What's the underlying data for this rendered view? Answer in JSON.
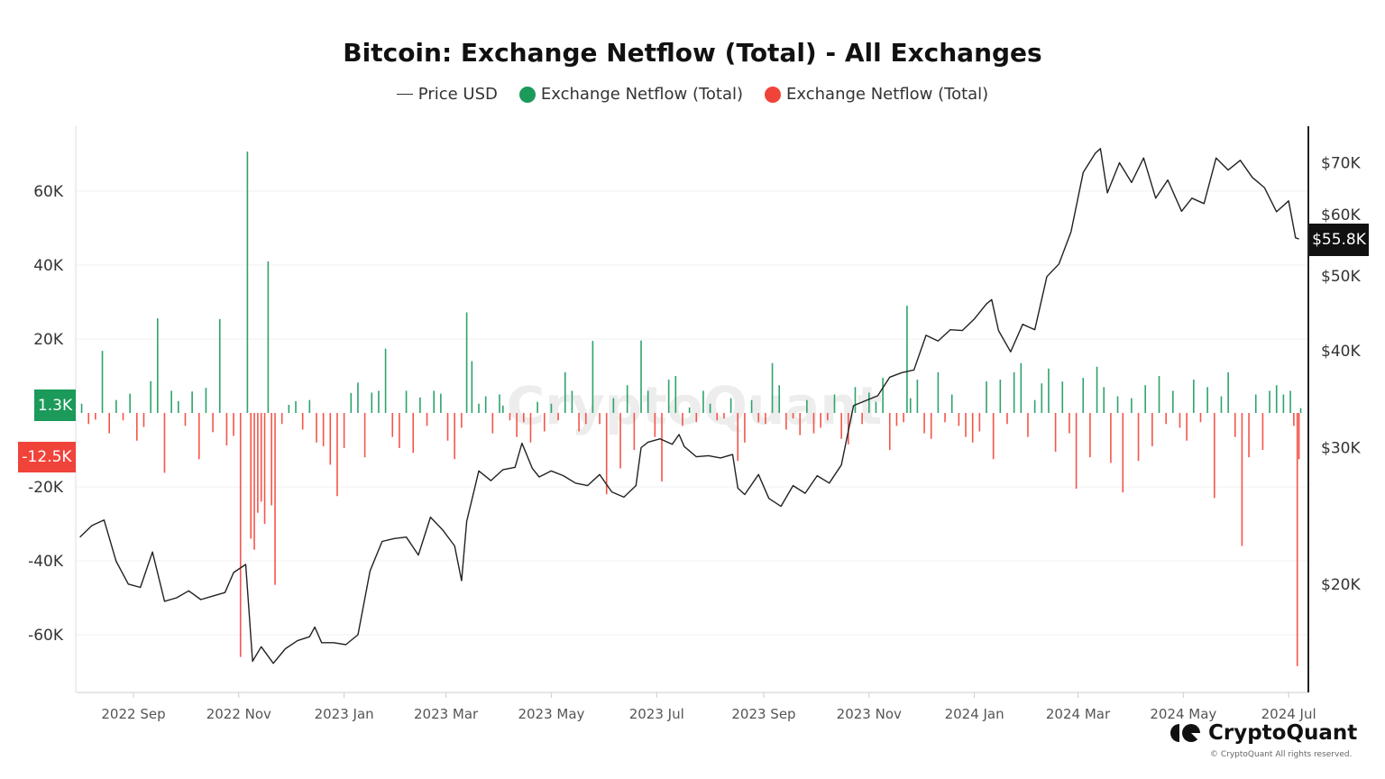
{
  "chart_data": {
    "type": "bar+line",
    "title": "Bitcoin: Exchange Netflow (Total) - All Exchanges",
    "legend": [
      "Price USD",
      "Exchange Netflow (Total)",
      "Exchange Netflow (Total)"
    ],
    "legend_placement": "top",
    "colors": {
      "price": "#222222",
      "inflow": "#2ea36b",
      "outflow": "#f4554a",
      "inflow_badge": "#1b9a5a",
      "outflow_badge": "#f0433a",
      "price_badge": "#111111"
    },
    "x_ticks": [
      "2022 Sep",
      "2022 Nov",
      "2023 Jan",
      "2023 Mar",
      "2023 May",
      "2023 Jul",
      "2023 Sep",
      "2023 Nov",
      "2024 Jan",
      "2024 Mar",
      "2024 May",
      "2024 Jul"
    ],
    "x_tick_dates": [
      "2022-09-01",
      "2022-11-01",
      "2023-01-01",
      "2023-03-01",
      "2023-05-01",
      "2023-07-01",
      "2023-09-01",
      "2023-11-01",
      "2024-01-01",
      "2024-03-01",
      "2024-05-01",
      "2024-07-01"
    ],
    "y_left": {
      "ticks": [
        60000,
        40000,
        20000,
        -20000,
        -40000,
        -60000
      ],
      "tick_labels": [
        "60K",
        "40K",
        "20K",
        "-20K",
        "-40K",
        "-60K"
      ],
      "range": [
        -75000,
        77000
      ],
      "grid": true
    },
    "y_right": {
      "scale": "log",
      "ticks": [
        70000,
        60000,
        50000,
        40000,
        30000,
        20000
      ],
      "tick_labels": [
        "$70K",
        "$60K",
        "$50K",
        "$40K",
        "$30K",
        "$20K"
      ]
    },
    "badges": {
      "inflow_last": "1.3K",
      "outflow_last": "-12.5K",
      "price_last": "$55.8K"
    },
    "price": [
      [
        "2022-08-01",
        23000
      ],
      [
        "2022-08-08",
        23800
      ],
      [
        "2022-08-15",
        24200
      ],
      [
        "2022-08-22",
        21400
      ],
      [
        "2022-08-29",
        20000
      ],
      [
        "2022-09-05",
        19800
      ],
      [
        "2022-09-12",
        22000
      ],
      [
        "2022-09-19",
        19000
      ],
      [
        "2022-09-26",
        19200
      ],
      [
        "2022-10-03",
        19600
      ],
      [
        "2022-10-10",
        19100
      ],
      [
        "2022-10-17",
        19300
      ],
      [
        "2022-10-24",
        19500
      ],
      [
        "2022-10-29",
        20700
      ],
      [
        "2022-11-05",
        21200
      ],
      [
        "2022-11-09",
        15900
      ],
      [
        "2022-11-14",
        16600
      ],
      [
        "2022-11-21",
        15800
      ],
      [
        "2022-11-28",
        16500
      ],
      [
        "2022-12-05",
        16900
      ],
      [
        "2022-12-12",
        17100
      ],
      [
        "2022-12-15",
        17600
      ],
      [
        "2022-12-19",
        16800
      ],
      [
        "2022-12-26",
        16800
      ],
      [
        "2023-01-02",
        16700
      ],
      [
        "2023-01-09",
        17200
      ],
      [
        "2023-01-16",
        20800
      ],
      [
        "2023-01-23",
        22700
      ],
      [
        "2023-01-30",
        22900
      ],
      [
        "2023-02-06",
        23000
      ],
      [
        "2023-02-13",
        21800
      ],
      [
        "2023-02-20",
        24400
      ],
      [
        "2023-02-27",
        23500
      ],
      [
        "2023-03-06",
        22400
      ],
      [
        "2023-03-10",
        20200
      ],
      [
        "2023-03-13",
        24100
      ],
      [
        "2023-03-20",
        28000
      ],
      [
        "2023-03-27",
        27200
      ],
      [
        "2023-04-03",
        28100
      ],
      [
        "2023-04-10",
        28300
      ],
      [
        "2023-04-14",
        30400
      ],
      [
        "2023-04-20",
        28200
      ],
      [
        "2023-04-24",
        27500
      ],
      [
        "2023-05-01",
        28000
      ],
      [
        "2023-05-08",
        27600
      ],
      [
        "2023-05-15",
        27000
      ],
      [
        "2023-05-22",
        26800
      ],
      [
        "2023-05-29",
        27700
      ],
      [
        "2023-06-05",
        26300
      ],
      [
        "2023-06-12",
        25900
      ],
      [
        "2023-06-19",
        26800
      ],
      [
        "2023-06-22",
        30000
      ],
      [
        "2023-06-26",
        30500
      ],
      [
        "2023-07-03",
        30800
      ],
      [
        "2023-07-10",
        30300
      ],
      [
        "2023-07-14",
        31200
      ],
      [
        "2023-07-17",
        30100
      ],
      [
        "2023-07-24",
        29200
      ],
      [
        "2023-07-31",
        29300
      ],
      [
        "2023-08-07",
        29100
      ],
      [
        "2023-08-14",
        29400
      ],
      [
        "2023-08-17",
        26600
      ],
      [
        "2023-08-21",
        26100
      ],
      [
        "2023-08-29",
        27700
      ],
      [
        "2023-09-04",
        25800
      ],
      [
        "2023-09-11",
        25200
      ],
      [
        "2023-09-18",
        26800
      ],
      [
        "2023-09-25",
        26200
      ],
      [
        "2023-10-02",
        27600
      ],
      [
        "2023-10-09",
        27000
      ],
      [
        "2023-10-16",
        28500
      ],
      [
        "2023-10-23",
        34000
      ],
      [
        "2023-10-30",
        34500
      ],
      [
        "2023-11-06",
        35000
      ],
      [
        "2023-11-13",
        37000
      ],
      [
        "2023-11-20",
        37500
      ],
      [
        "2023-11-27",
        37800
      ],
      [
        "2023-12-04",
        41900
      ],
      [
        "2023-12-11",
        41200
      ],
      [
        "2023-12-18",
        42600
      ],
      [
        "2023-12-25",
        42500
      ],
      [
        "2024-01-01",
        44000
      ],
      [
        "2024-01-08",
        46000
      ],
      [
        "2024-01-11",
        46600
      ],
      [
        "2024-01-15",
        42500
      ],
      [
        "2024-01-22",
        39900
      ],
      [
        "2024-01-29",
        43300
      ],
      [
        "2024-02-05",
        42600
      ],
      [
        "2024-02-12",
        49900
      ],
      [
        "2024-02-19",
        51800
      ],
      [
        "2024-02-26",
        57000
      ],
      [
        "2024-03-04",
        68000
      ],
      [
        "2024-03-11",
        72000
      ],
      [
        "2024-03-14",
        73000
      ],
      [
        "2024-03-18",
        64000
      ],
      [
        "2024-03-25",
        70000
      ],
      [
        "2024-04-01",
        66000
      ],
      [
        "2024-04-08",
        71000
      ],
      [
        "2024-04-15",
        63000
      ],
      [
        "2024-04-22",
        66500
      ],
      [
        "2024-04-30",
        60600
      ],
      [
        "2024-05-06",
        63000
      ],
      [
        "2024-05-13",
        62000
      ],
      [
        "2024-05-20",
        71000
      ],
      [
        "2024-05-27",
        68500
      ],
      [
        "2024-06-03",
        70500
      ],
      [
        "2024-06-10",
        67000
      ],
      [
        "2024-06-17",
        65000
      ],
      [
        "2024-06-24",
        60500
      ],
      [
        "2024-07-01",
        62500
      ],
      [
        "2024-07-05",
        56000
      ],
      [
        "2024-07-07",
        55800
      ]
    ],
    "netflow": [
      [
        "2022-08-02",
        2500
      ],
      [
        "2022-08-06",
        -3000
      ],
      [
        "2022-08-10",
        -1800
      ],
      [
        "2022-08-14",
        16800
      ],
      [
        "2022-08-18",
        -5500
      ],
      [
        "2022-08-22",
        3500
      ],
      [
        "2022-08-26",
        -2000
      ],
      [
        "2022-08-30",
        5200
      ],
      [
        "2022-09-03",
        -7500
      ],
      [
        "2022-09-07",
        -3800
      ],
      [
        "2022-09-11",
        8600
      ],
      [
        "2022-09-15",
        25600
      ],
      [
        "2022-09-19",
        -16200
      ],
      [
        "2022-09-23",
        6000
      ],
      [
        "2022-09-27",
        3200
      ],
      [
        "2022-10-01",
        -3500
      ],
      [
        "2022-10-05",
        5800
      ],
      [
        "2022-10-09",
        -12500
      ],
      [
        "2022-10-13",
        6800
      ],
      [
        "2022-10-17",
        -5200
      ],
      [
        "2022-10-21",
        25400
      ],
      [
        "2022-10-25",
        -8800
      ],
      [
        "2022-10-29",
        -6200
      ],
      [
        "2022-11-02",
        -66000
      ],
      [
        "2022-11-06",
        70700
      ],
      [
        "2022-11-08",
        -34000
      ],
      [
        "2022-11-10",
        -37000
      ],
      [
        "2022-11-12",
        -27000
      ],
      [
        "2022-11-14",
        -24000
      ],
      [
        "2022-11-16",
        -30000
      ],
      [
        "2022-11-18",
        41000
      ],
      [
        "2022-11-20",
        -25000
      ],
      [
        "2022-11-22",
        -46500
      ],
      [
        "2022-11-26",
        -3000
      ],
      [
        "2022-11-30",
        2200
      ],
      [
        "2022-12-04",
        3200
      ],
      [
        "2022-12-08",
        -4500
      ],
      [
        "2022-12-12",
        3500
      ],
      [
        "2022-12-16",
        -8000
      ],
      [
        "2022-12-20",
        -9000
      ],
      [
        "2022-12-24",
        -14000
      ],
      [
        "2022-12-28",
        -22500
      ],
      [
        "2023-01-01",
        -9500
      ],
      [
        "2023-01-05",
        5400
      ],
      [
        "2023-01-09",
        8200
      ],
      [
        "2023-01-13",
        -12000
      ],
      [
        "2023-01-17",
        5500
      ],
      [
        "2023-01-21",
        6000
      ],
      [
        "2023-01-25",
        17400
      ],
      [
        "2023-01-29",
        -6500
      ],
      [
        "2023-02-02",
        -9500
      ],
      [
        "2023-02-06",
        6000
      ],
      [
        "2023-02-10",
        -10800
      ],
      [
        "2023-02-14",
        4200
      ],
      [
        "2023-02-18",
        -3500
      ],
      [
        "2023-02-22",
        6000
      ],
      [
        "2023-02-26",
        5200
      ],
      [
        "2023-03-02",
        -7500
      ],
      [
        "2023-03-06",
        -12500
      ],
      [
        "2023-03-10",
        -4000
      ],
      [
        "2023-03-13",
        27200
      ],
      [
        "2023-03-16",
        14000
      ],
      [
        "2023-03-20",
        2500
      ],
      [
        "2023-03-24",
        4500
      ],
      [
        "2023-03-28",
        -5500
      ],
      [
        "2023-04-01",
        5000
      ],
      [
        "2023-04-03",
        2000
      ],
      [
        "2023-04-07",
        -2000
      ],
      [
        "2023-04-11",
        -6500
      ],
      [
        "2023-04-15",
        -2500
      ],
      [
        "2023-04-19",
        -8000
      ],
      [
        "2023-04-23",
        3000
      ],
      [
        "2023-04-27",
        -5000
      ],
      [
        "2023-05-01",
        2500
      ],
      [
        "2023-05-05",
        -2000
      ],
      [
        "2023-05-09",
        11000
      ],
      [
        "2023-05-13",
        6000
      ],
      [
        "2023-05-17",
        -5000
      ],
      [
        "2023-05-21",
        -3000
      ],
      [
        "2023-05-25",
        19500
      ],
      [
        "2023-05-29",
        -3000
      ],
      [
        "2023-06-02",
        -22000
      ],
      [
        "2023-06-06",
        4000
      ],
      [
        "2023-06-10",
        -15000
      ],
      [
        "2023-06-14",
        7500
      ],
      [
        "2023-06-18",
        -10000
      ],
      [
        "2023-06-22",
        19600
      ],
      [
        "2023-06-26",
        6000
      ],
      [
        "2023-06-30",
        -6500
      ],
      [
        "2023-07-04",
        -18500
      ],
      [
        "2023-07-08",
        9000
      ],
      [
        "2023-07-12",
        10000
      ],
      [
        "2023-07-16",
        -3500
      ],
      [
        "2023-07-20",
        1500
      ],
      [
        "2023-07-24",
        -2500
      ],
      [
        "2023-07-28",
        6000
      ],
      [
        "2023-08-01",
        2500
      ],
      [
        "2023-08-05",
        -2000
      ],
      [
        "2023-08-09",
        -1500
      ],
      [
        "2023-08-13",
        4000
      ],
      [
        "2023-08-17",
        -13000
      ],
      [
        "2023-08-21",
        -8000
      ],
      [
        "2023-08-25",
        3500
      ],
      [
        "2023-08-29",
        -2500
      ],
      [
        "2023-09-02",
        -3000
      ],
      [
        "2023-09-06",
        13500
      ],
      [
        "2023-09-10",
        7500
      ],
      [
        "2023-09-14",
        -4500
      ],
      [
        "2023-09-18",
        -1500
      ],
      [
        "2023-09-22",
        -6000
      ],
      [
        "2023-09-26",
        3500
      ],
      [
        "2023-09-30",
        -5500
      ],
      [
        "2023-10-04",
        -4000
      ],
      [
        "2023-10-08",
        -2000
      ],
      [
        "2023-10-12",
        5000
      ],
      [
        "2023-10-16",
        -7000
      ],
      [
        "2023-10-20",
        -8500
      ],
      [
        "2023-10-24",
        7000
      ],
      [
        "2023-10-28",
        -3000
      ],
      [
        "2023-11-01",
        5500
      ],
      [
        "2023-11-05",
        3000
      ],
      [
        "2023-11-09",
        9500
      ],
      [
        "2023-11-13",
        -10000
      ],
      [
        "2023-11-17",
        -3500
      ],
      [
        "2023-11-21",
        -2500
      ],
      [
        "2023-11-23",
        29000
      ],
      [
        "2023-11-25",
        4000
      ],
      [
        "2023-11-29",
        9000
      ],
      [
        "2023-12-03",
        -5500
      ],
      [
        "2023-12-07",
        -7000
      ],
      [
        "2023-12-11",
        11000
      ],
      [
        "2023-12-15",
        -2500
      ],
      [
        "2023-12-19",
        5000
      ],
      [
        "2023-12-23",
        -3500
      ],
      [
        "2023-12-27",
        -6500
      ],
      [
        "2023-12-31",
        -8000
      ],
      [
        "2024-01-04",
        -5000
      ],
      [
        "2024-01-08",
        8500
      ],
      [
        "2024-01-12",
        -12500
      ],
      [
        "2024-01-16",
        9000
      ],
      [
        "2024-01-20",
        -3000
      ],
      [
        "2024-01-24",
        11000
      ],
      [
        "2024-01-28",
        13500
      ],
      [
        "2024-02-01",
        -6500
      ],
      [
        "2024-02-05",
        3500
      ],
      [
        "2024-02-09",
        8000
      ],
      [
        "2024-02-13",
        12000
      ],
      [
        "2024-02-17",
        -10500
      ],
      [
        "2024-02-21",
        8500
      ],
      [
        "2024-02-25",
        -5500
      ],
      [
        "2024-02-29",
        -20500
      ],
      [
        "2024-03-04",
        9500
      ],
      [
        "2024-03-08",
        -12000
      ],
      [
        "2024-03-12",
        12500
      ],
      [
        "2024-03-16",
        7000
      ],
      [
        "2024-03-20",
        -13500
      ],
      [
        "2024-03-24",
        4500
      ],
      [
        "2024-03-27",
        -21500
      ],
      [
        "2024-04-01",
        4000
      ],
      [
        "2024-04-05",
        -13000
      ],
      [
        "2024-04-09",
        7500
      ],
      [
        "2024-04-13",
        -9000
      ],
      [
        "2024-04-17",
        10000
      ],
      [
        "2024-04-21",
        -3000
      ],
      [
        "2024-04-25",
        6000
      ],
      [
        "2024-04-29",
        -4000
      ],
      [
        "2024-05-03",
        -7500
      ],
      [
        "2024-05-07",
        9000
      ],
      [
        "2024-05-11",
        -2500
      ],
      [
        "2024-05-15",
        7000
      ],
      [
        "2024-05-19",
        -23000
      ],
      [
        "2024-05-23",
        4500
      ],
      [
        "2024-05-27",
        11000
      ],
      [
        "2024-05-31",
        -6500
      ],
      [
        "2024-06-04",
        -36000
      ],
      [
        "2024-06-08",
        -12000
      ],
      [
        "2024-06-12",
        5000
      ],
      [
        "2024-06-16",
        -10000
      ],
      [
        "2024-06-20",
        6000
      ],
      [
        "2024-06-24",
        7500
      ],
      [
        "2024-06-28",
        5000
      ],
      [
        "2024-07-02",
        6000
      ],
      [
        "2024-07-04",
        -3500
      ],
      [
        "2024-07-06",
        -68500
      ],
      [
        "2024-07-07",
        -12500
      ],
      [
        "2024-07-08",
        1300
      ]
    ]
  },
  "watermark": "CryptoQuant",
  "branding": {
    "logo_text": "CryptoQuant",
    "copyright": "© CryptoQuant All rights reserved."
  }
}
